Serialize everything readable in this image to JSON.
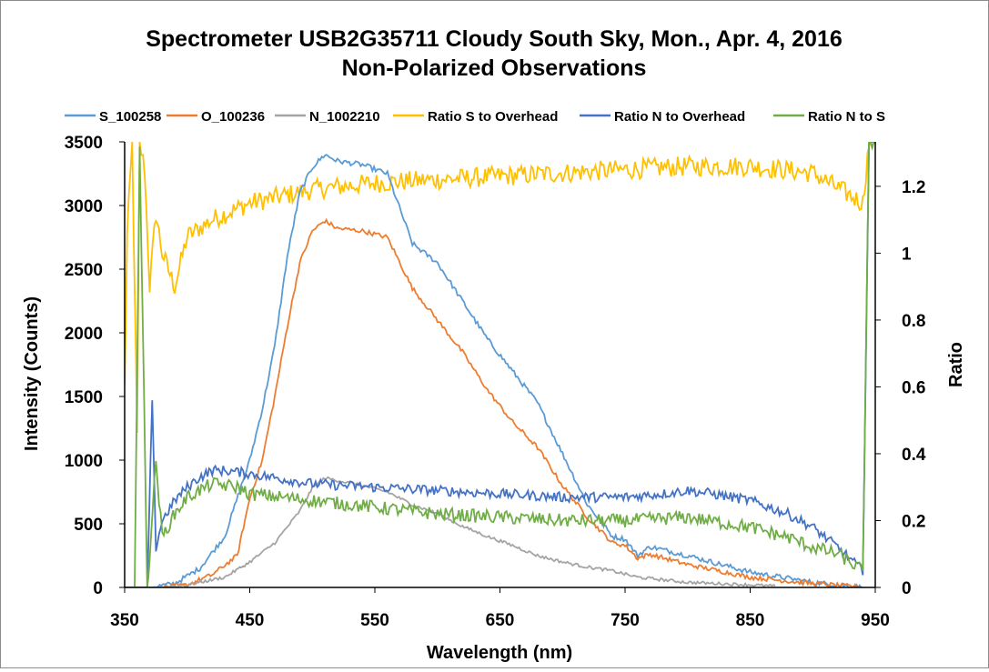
{
  "chart_data": {
    "type": "line",
    "title": "Spectrometer USB2G35711 Cloudy South Sky, Mon., Apr. 4, 2016",
    "subtitle": "Non-Polarized Observations",
    "xlabel": "Wavelength (nm)",
    "ylabel": "Intensity (Counts)",
    "y2label": "Ratio",
    "xlim": [
      350,
      950
    ],
    "ylim": [
      0,
      3500
    ],
    "y2lim": [
      0,
      1.333
    ],
    "x_ticks": [
      "350",
      "450",
      "550",
      "650",
      "750",
      "850",
      "950"
    ],
    "y_ticks": [
      "0",
      "500",
      "1000",
      "1500",
      "2000",
      "2500",
      "3000",
      "3500"
    ],
    "y2_ticks": [
      "0",
      "0.2",
      "0.4",
      "0.6",
      "0.8",
      "1",
      "1.2"
    ],
    "legend_position": "top",
    "grid": false,
    "series": [
      {
        "name": "S_100258",
        "axis": "left",
        "color": "#5b9bd5",
        "noise": 20,
        "x": [
          350,
          370,
          390,
          410,
          430,
          450,
          460,
          470,
          480,
          490,
          500,
          510,
          520,
          540,
          560,
          580,
          600,
          620,
          640,
          660,
          680,
          700,
          720,
          740,
          750,
          760,
          770,
          800,
          850,
          900,
          930,
          940
        ],
        "y": [
          0,
          0,
          30,
          150,
          400,
          1000,
          1400,
          1900,
          2600,
          3100,
          3300,
          3400,
          3350,
          3320,
          3250,
          2700,
          2550,
          2250,
          1950,
          1700,
          1450,
          1050,
          650,
          400,
          380,
          250,
          320,
          250,
          120,
          40,
          10,
          0
        ]
      },
      {
        "name": "O_100236",
        "axis": "left",
        "color": "#ed7d31",
        "noise": 18,
        "x": [
          350,
          380,
          400,
          420,
          440,
          450,
          460,
          470,
          480,
          490,
          500,
          510,
          520,
          540,
          560,
          580,
          600,
          620,
          640,
          660,
          680,
          700,
          720,
          740,
          750,
          760,
          770,
          800,
          850,
          900,
          930,
          940
        ],
        "y": [
          0,
          0,
          20,
          100,
          250,
          700,
          1000,
          1500,
          2050,
          2550,
          2800,
          2880,
          2820,
          2800,
          2750,
          2350,
          2100,
          1850,
          1550,
          1300,
          1100,
          800,
          550,
          350,
          330,
          230,
          260,
          180,
          80,
          30,
          10,
          0
        ]
      },
      {
        "name": "N_1002210",
        "axis": "left",
        "color": "#a5a5a5",
        "noise": 12,
        "x": [
          350,
          380,
          400,
          430,
          450,
          470,
          490,
          500,
          510,
          520,
          540,
          560,
          580,
          600,
          620,
          640,
          660,
          680,
          700,
          720,
          740,
          760,
          780,
          800,
          850,
          870
        ],
        "y": [
          0,
          0,
          20,
          80,
          200,
          350,
          600,
          780,
          860,
          840,
          800,
          750,
          650,
          580,
          480,
          400,
          330,
          250,
          200,
          160,
          130,
          80,
          60,
          40,
          20,
          10
        ]
      },
      {
        "name": "Ratio S to Overhead",
        "axis": "right",
        "color": "#ffc000",
        "noise": 0.03,
        "x": [
          350,
          352,
          356,
          360,
          362,
          366,
          370,
          375,
          380,
          390,
          400,
          420,
          450,
          500,
          550,
          600,
          650,
          700,
          750,
          800,
          850,
          900,
          940,
          945,
          950
        ],
        "y": [
          0.6,
          1.05,
          1.33,
          0.45,
          1.33,
          1.25,
          0.9,
          1.12,
          1.0,
          0.9,
          1.05,
          1.1,
          1.15,
          1.19,
          1.21,
          1.22,
          1.23,
          1.24,
          1.25,
          1.26,
          1.26,
          1.24,
          1.15,
          1.33,
          1.33
        ]
      },
      {
        "name": "Ratio N to Overhead",
        "axis": "right",
        "color": "#4472c4",
        "noise": 0.015,
        "x": [
          350,
          368,
          372,
          375,
          380,
          390,
          400,
          410,
          420,
          430,
          450,
          500,
          550,
          600,
          650,
          700,
          750,
          780,
          800,
          820,
          850,
          880,
          900,
          920,
          940,
          945,
          950
        ],
        "y": [
          0,
          0,
          0.55,
          0.12,
          0.2,
          0.26,
          0.3,
          0.33,
          0.35,
          0.35,
          0.34,
          0.31,
          0.3,
          0.29,
          0.28,
          0.27,
          0.27,
          0.28,
          0.29,
          0.28,
          0.26,
          0.22,
          0.18,
          0.12,
          0.05,
          1.33,
          1.33
        ]
      },
      {
        "name": "Ratio N to S",
        "axis": "right",
        "color": "#70ad47",
        "noise": 0.02,
        "x": [
          350,
          358,
          362,
          368,
          370,
          375,
          380,
          390,
          400,
          410,
          420,
          440,
          450,
          500,
          550,
          600,
          650,
          700,
          750,
          800,
          850,
          880,
          900,
          920,
          940,
          945,
          950
        ],
        "y": [
          0,
          0,
          1.33,
          0,
          0.1,
          0.38,
          0.15,
          0.22,
          0.27,
          0.29,
          0.31,
          0.3,
          0.28,
          0.26,
          0.24,
          0.22,
          0.21,
          0.2,
          0.2,
          0.21,
          0.18,
          0.15,
          0.12,
          0.1,
          0.05,
          1.33,
          1.33
        ]
      }
    ]
  }
}
